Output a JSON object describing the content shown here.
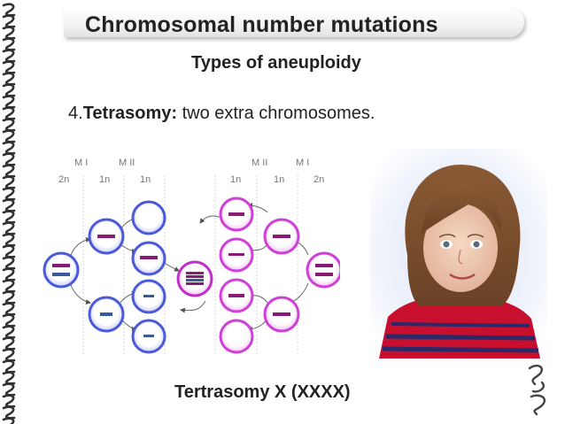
{
  "slide": {
    "title": "Chromosomal number mutations",
    "subtitle": "Types of aneuploidy",
    "point_number": "4.",
    "point_term": "Tetrasomy:",
    "point_text": " two extra chromosomes.",
    "caption": "Tertrasomy X (XXXX)"
  },
  "diagram": {
    "left_stages": [
      "M I",
      "M II"
    ],
    "left_ploidy": [
      "2n",
      "1n",
      "1n"
    ],
    "right_stages": [
      "M II",
      "M I"
    ],
    "right_ploidy": [
      "1n",
      "1n",
      "2n"
    ]
  },
  "colors": {
    "male_cell": "#4a5ad8",
    "female_cell": "#d040d8",
    "zygote": "#c030c8",
    "chrom_male": "#3a5aa0",
    "chrom_female": "#8a1a78"
  }
}
